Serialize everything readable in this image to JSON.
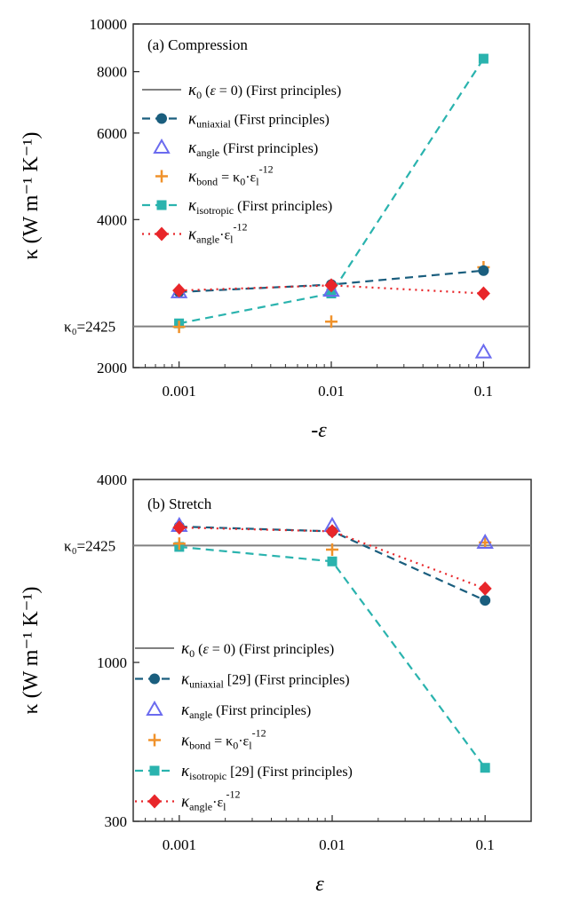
{
  "figure": {
    "background": "#ffffff"
  },
  "chart_data": [
    {
      "type": "line",
      "title": "(a) Compression",
      "xlabel": "-ε",
      "ylabel": "κ (W m⁻¹ K⁻¹)",
      "xscale": "log",
      "yscale": "log",
      "xlim": [
        0.0005,
        0.2
      ],
      "ylim": [
        2000,
        10000
      ],
      "x_ticks": [
        0.001,
        0.01,
        0.1
      ],
      "x_tick_labels": [
        "0.001",
        "0.01",
        "0.1"
      ],
      "y_ticks": [
        2000,
        4000,
        6000,
        8000,
        10000
      ],
      "y_tick_labels": [
        "2000",
        "4000",
        "6000",
        "8000",
        "10000"
      ],
      "reference_line": {
        "value": 2425,
        "label": "κ₀=2425",
        "color": "#808080"
      },
      "legend_position": "upper-left",
      "series": [
        {
          "name": "κ₀ (ε = 0) (First principles)",
          "kind": "hline",
          "value": 2425,
          "color": "#808080"
        },
        {
          "name": "κuniaxial (First principles)",
          "marker": "circle",
          "line": "dashed",
          "color": "#1a5e7e",
          "x": [
            0.001,
            0.01,
            0.1
          ],
          "values": [
            2850,
            2950,
            3150
          ]
        },
        {
          "name": "κangle (First principles)",
          "marker": "triangle-open",
          "line": "none",
          "color": "#6b6bef",
          "x": [
            0.001,
            0.01,
            0.1
          ],
          "values": [
            2850,
            2870,
            2150
          ]
        },
        {
          "name": "κbond = κ0·εl⁻¹²",
          "marker": "plus",
          "line": "none",
          "color": "#f0922b",
          "x": [
            0.001,
            0.01,
            0.1
          ],
          "values": [
            2420,
            2480,
            3200
          ]
        },
        {
          "name": "κisotropic (First principles)",
          "marker": "square",
          "line": "dashed",
          "color": "#2ab3ae",
          "x": [
            0.001,
            0.01,
            0.1
          ],
          "values": [
            2460,
            2830,
            8500
          ]
        },
        {
          "name": "κangle·εl⁻¹²",
          "marker": "diamond",
          "line": "dotted",
          "color": "#e8262a",
          "x": [
            0.001,
            0.01,
            0.1
          ],
          "values": [
            2870,
            2940,
            2830
          ]
        }
      ],
      "legend": [
        {
          "pre": "κ",
          "sub": "0",
          "post": " (",
          "ital": "ε",
          "post2": " = 0) (First principles)"
        },
        {
          "pre": "κ",
          "sub": "uniaxial",
          "post": " (First principles)"
        },
        {
          "pre": "κ",
          "sub": "angle",
          "post": " (First principles)"
        },
        {
          "pre": "κ",
          "sub": "bond",
          "post": " = κ",
          "sub2": "0",
          "post2": "·ε",
          "sub3": "l",
          "sup3": "-12"
        },
        {
          "pre": "κ",
          "sub": "isotropic",
          "post": " (First principles)"
        },
        {
          "pre": "κ",
          "sub": "angle",
          "post": "·ε",
          "sub2": "l",
          "sup2": "-12"
        }
      ]
    },
    {
      "type": "line",
      "title": "(b) Stretch",
      "xlabel": "ε",
      "ylabel": "κ (W m⁻¹ K⁻¹)",
      "xscale": "log",
      "yscale": "log",
      "xlim": [
        0.0005,
        0.2
      ],
      "ylim": [
        300,
        4000
      ],
      "x_ticks": [
        0.001,
        0.01,
        0.1
      ],
      "x_tick_labels": [
        "0.001",
        "0.01",
        "0.1"
      ],
      "y_ticks": [
        300,
        1000,
        4000
      ],
      "y_tick_labels": [
        "300",
        "1000",
        "4000"
      ],
      "reference_line": {
        "value": 2425,
        "label": "κ₀=2425",
        "color": "#808080"
      },
      "legend_position": "lower-left",
      "series": [
        {
          "name": "κ₀ (ε = 0) (First principles)",
          "kind": "hline",
          "value": 2425,
          "color": "#808080"
        },
        {
          "name": "κuniaxial [29] (First principles)",
          "marker": "circle",
          "line": "dashed",
          "color": "#1a5e7e",
          "x": [
            0.001,
            0.01,
            0.1
          ],
          "values": [
            2800,
            2700,
            1600
          ]
        },
        {
          "name": "κangle (First principles)",
          "marker": "triangle-open",
          "line": "none",
          "color": "#6b6bef",
          "x": [
            0.001,
            0.01,
            0.1
          ],
          "values": [
            2820,
            2820,
            2480
          ]
        },
        {
          "name": "κbond = κ0·εl⁻¹²",
          "marker": "plus",
          "line": "none",
          "color": "#f0922b",
          "x": [
            0.001,
            0.01,
            0.1
          ],
          "values": [
            2460,
            2350,
            2480
          ]
        },
        {
          "name": "κisotropic [29] (First principles)",
          "marker": "square",
          "line": "dashed",
          "color": "#2ab3ae",
          "x": [
            0.001,
            0.01,
            0.1
          ],
          "values": [
            2400,
            2150,
            450
          ]
        },
        {
          "name": "κangle·εl⁻¹²",
          "marker": "diamond",
          "line": "dotted",
          "color": "#e8262a",
          "x": [
            0.001,
            0.01,
            0.1
          ],
          "values": [
            2780,
            2700,
            1750
          ]
        }
      ],
      "legend": [
        {
          "pre": "κ",
          "sub": "0",
          "post": " (",
          "ital": "ε",
          "post2": " = 0) (First principles)"
        },
        {
          "pre": "κ",
          "sub": "uniaxial",
          "post": " [29] (First principles)"
        },
        {
          "pre": "κ",
          "sub": "angle",
          "post": " (First principles)"
        },
        {
          "pre": "κ",
          "sub": "bond",
          "post": " = κ",
          "sub2": "0",
          "post2": "·ε",
          "sub3": "l",
          "sup3": "-12"
        },
        {
          "pre": "κ",
          "sub": "isotropic",
          "post": " [29] (First principles)"
        },
        {
          "pre": "κ",
          "sub": "angle",
          "post": "·ε",
          "sub2": "l",
          "sup2": "-12"
        }
      ]
    }
  ]
}
